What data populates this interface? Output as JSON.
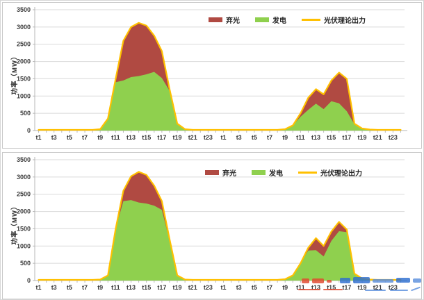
{
  "page": {
    "background": "#ffffff",
    "frame_border": "#d6d6d6",
    "panel_border": "#c9c9c9"
  },
  "chart_data": [
    {
      "type": "area",
      "title": "",
      "ylabel": "功率（MW）",
      "xlabel": "",
      "ylim": [
        0,
        3500
      ],
      "yticks": [
        0,
        500,
        1000,
        1500,
        2000,
        2500,
        3000,
        3500
      ],
      "grid": "horizontal",
      "legend_position": "top-center",
      "x_ticklabel_rule": "odd hours only, two consecutive days t1–t24",
      "categories": [
        "t1",
        "t2",
        "t3",
        "t4",
        "t5",
        "t6",
        "t7",
        "t8",
        "t9",
        "t10",
        "t11",
        "t12",
        "t13",
        "t14",
        "t15",
        "t16",
        "t17",
        "t18",
        "t19",
        "t20",
        "t21",
        "t22",
        "t23",
        "t24",
        "t1",
        "t2",
        "t3",
        "t4",
        "t5",
        "t6",
        "t7",
        "t8",
        "t9",
        "t10",
        "t11",
        "t12",
        "t13",
        "t14",
        "t15",
        "t16",
        "t17",
        "t18",
        "t19",
        "t20",
        "t21",
        "t22",
        "t23",
        "t24"
      ],
      "series": [
        {
          "name": "弃光",
          "color": "#b04a42",
          "role": "curtailment-area",
          "derived": "theoretical minus generation"
        },
        {
          "name": "发电",
          "color": "#8fd04e",
          "role": "generation-area",
          "values": [
            20,
            20,
            20,
            20,
            20,
            20,
            20,
            20,
            40,
            350,
            1400,
            1450,
            1550,
            1580,
            1630,
            1700,
            1520,
            1150,
            200,
            40,
            20,
            20,
            20,
            20,
            20,
            20,
            20,
            20,
            20,
            20,
            20,
            20,
            40,
            150,
            400,
            600,
            780,
            620,
            850,
            790,
            560,
            180,
            60,
            30,
            20,
            20,
            20,
            20
          ]
        },
        {
          "name": "光伏理论出力",
          "color": "#ffc000",
          "role": "theoretical-line",
          "values": [
            20,
            20,
            20,
            20,
            20,
            20,
            20,
            20,
            40,
            350,
            1500,
            2600,
            3000,
            3120,
            3040,
            2750,
            2300,
            1200,
            200,
            40,
            20,
            20,
            20,
            20,
            20,
            20,
            20,
            20,
            20,
            20,
            20,
            20,
            40,
            150,
            500,
            950,
            1200,
            1050,
            1450,
            1680,
            1500,
            200,
            60,
            30,
            20,
            20,
            20,
            20
          ]
        }
      ]
    },
    {
      "type": "area",
      "title": "",
      "ylabel": "功率（MW）",
      "xlabel": "",
      "ylim": [
        0,
        3500
      ],
      "yticks": [
        0,
        500,
        1000,
        1500,
        2000,
        2500,
        3000,
        3500
      ],
      "grid": "horizontal",
      "legend_position": "top-center",
      "x_ticklabel_rule": "odd hours only, two consecutive days t1–t24",
      "categories": [
        "t1",
        "t2",
        "t3",
        "t4",
        "t5",
        "t6",
        "t7",
        "t8",
        "t9",
        "t10",
        "t11",
        "t12",
        "t13",
        "t14",
        "t15",
        "t16",
        "t17",
        "t18",
        "t19",
        "t20",
        "t21",
        "t22",
        "t23",
        "t24",
        "t1",
        "t2",
        "t3",
        "t4",
        "t5",
        "t6",
        "t7",
        "t8",
        "t9",
        "t10",
        "t11",
        "t12",
        "t13",
        "t14",
        "t15",
        "t16",
        "t17",
        "t18",
        "t19",
        "t20",
        "t21",
        "t22",
        "t23",
        "t24"
      ],
      "series": [
        {
          "name": "弃光",
          "color": "#b04a42",
          "role": "curtailment-area",
          "derived": "theoretical minus generation"
        },
        {
          "name": "发电",
          "color": "#8fd04e",
          "role": "generation-area",
          "values": [
            20,
            20,
            20,
            20,
            20,
            20,
            20,
            20,
            30,
            150,
            1500,
            2300,
            2330,
            2260,
            2230,
            2170,
            2050,
            1150,
            150,
            30,
            20,
            20,
            20,
            20,
            20,
            20,
            20,
            20,
            20,
            20,
            20,
            20,
            40,
            150,
            500,
            870,
            880,
            700,
            1150,
            1430,
            1400,
            190,
            60,
            30,
            20,
            20,
            20,
            20
          ]
        },
        {
          "name": "光伏理论出力",
          "color": "#ffc000",
          "role": "theoretical-line",
          "values": [
            20,
            20,
            20,
            20,
            20,
            20,
            20,
            20,
            30,
            150,
            1500,
            2600,
            3020,
            3150,
            3060,
            2750,
            2300,
            1200,
            150,
            30,
            20,
            20,
            20,
            20,
            20,
            20,
            20,
            20,
            20,
            20,
            20,
            20,
            40,
            150,
            500,
            950,
            1230,
            1000,
            1420,
            1700,
            1480,
            200,
            60,
            30,
            20,
            20,
            20,
            20
          ]
        }
      ]
    }
  ]
}
